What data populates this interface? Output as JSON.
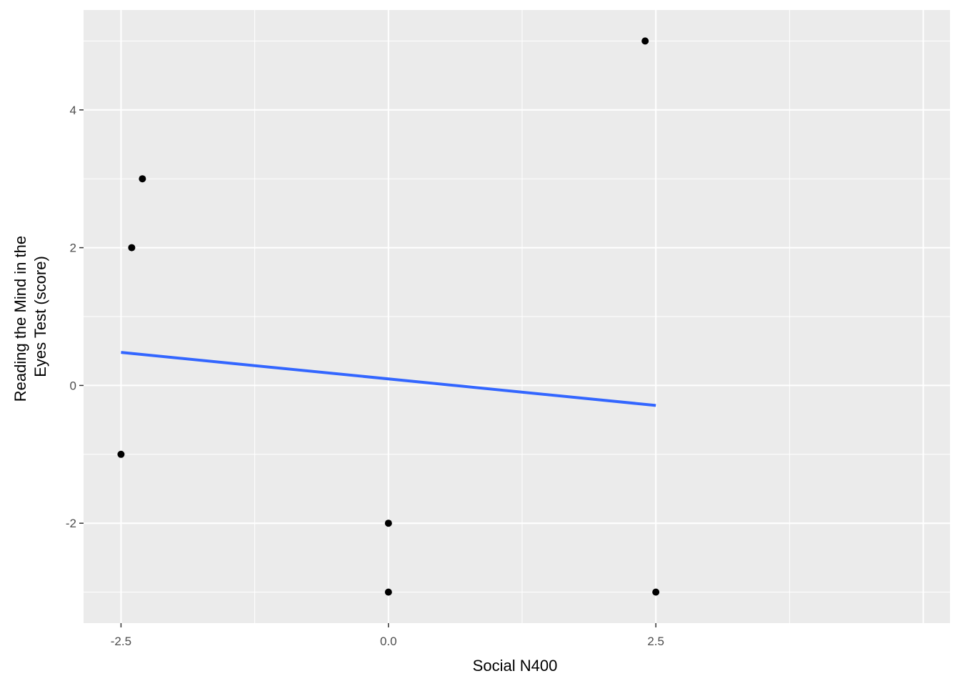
{
  "chart_data": {
    "type": "scatter",
    "title": "",
    "xlabel": "Social N400",
    "ylabel_lines": [
      "Reading the Mind in the",
      "Eyes Test (score)"
    ],
    "xlim": [
      -2.85,
      5.25
    ],
    "ylim": [
      -3.45,
      5.45
    ],
    "x_ticks": [
      -2.5,
      0.0,
      2.5
    ],
    "x_tick_labels": [
      "-2.5",
      "0.0",
      "2.5"
    ],
    "y_ticks": [
      -2,
      0,
      2,
      4
    ],
    "y_tick_labels": [
      "-2",
      "0",
      "2",
      "4"
    ],
    "grid": true,
    "points": [
      {
        "x": 2.4,
        "y": 5
      },
      {
        "x": -2.3,
        "y": 3
      },
      {
        "x": -2.4,
        "y": 2
      },
      {
        "x": -2.5,
        "y": -1
      },
      {
        "x": 0.0,
        "y": -2
      },
      {
        "x": 0.0,
        "y": -3
      },
      {
        "x": 2.5,
        "y": -3
      }
    ],
    "fit_line": {
      "x": [
        -2.5,
        2.5
      ],
      "y": [
        0.48,
        -0.29
      ]
    },
    "colors": {
      "panel": "#ebebeb",
      "grid": "#ffffff",
      "points": "#000000",
      "fit_line": "#3366ff"
    }
  }
}
